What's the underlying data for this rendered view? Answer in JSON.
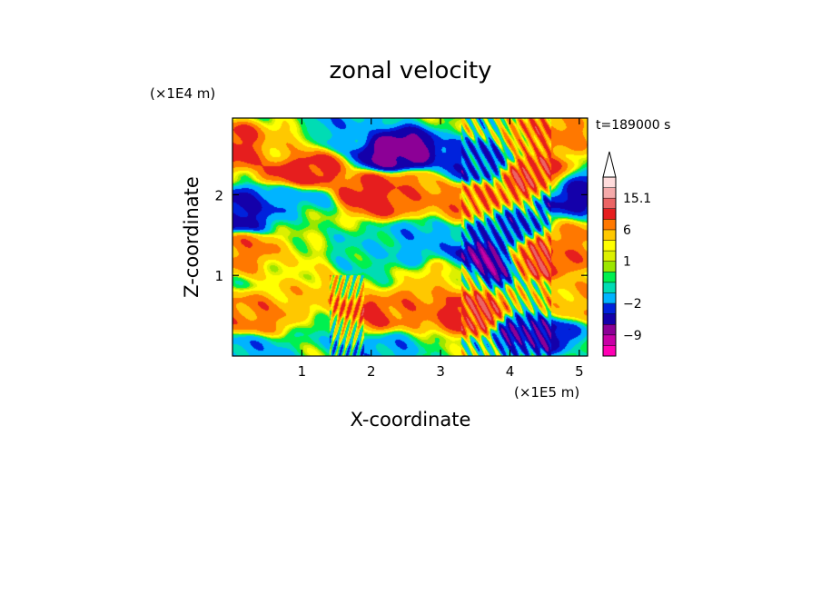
{
  "chart_data": {
    "type": "heatmap",
    "title": "zonal velocity",
    "xlabel": "X-coordinate",
    "ylabel": "Z-coordinate",
    "x_unit": "(×1E5 m)",
    "y_unit": "(×1E4 m)",
    "time_label": "t=189000 s",
    "xlim": [
      0,
      5.12
    ],
    "ylim": [
      0,
      2.95
    ],
    "x_ticks": [
      1,
      2,
      3,
      4,
      5
    ],
    "y_ticks": [
      1,
      2
    ],
    "colorbar": {
      "extend": "max",
      "levels": [
        -15,
        -12,
        -9,
        -6,
        -4,
        -2,
        -1,
        0,
        0.5,
        1,
        2,
        4,
        6,
        9,
        12,
        15.1
      ],
      "colors": [
        "#ff00b4",
        "#c800a6",
        "#8c0096",
        "#1400aa",
        "#0022dc",
        "#00b4ff",
        "#00dcb4",
        "#00f050",
        "#9be600",
        "#dcf000",
        "#ffff00",
        "#ffc800",
        "#ff7800",
        "#e61e1e",
        "#eb6464",
        "#f5aaaa",
        "#ffdcdc"
      ],
      "labels": [
        {
          "value": 15.1,
          "text": "15.1"
        },
        {
          "value": 6,
          "text": "6"
        },
        {
          "value": 1,
          "text": "1"
        },
        {
          "value": -2,
          "text": "−2"
        },
        {
          "value": -9,
          "text": "−9"
        }
      ]
    },
    "features": [
      {
        "x": 0.12,
        "z": 2.6,
        "value": 7.5
      },
      {
        "x": 0.65,
        "z": 2.6,
        "value": 2.5
      },
      {
        "x": 1.0,
        "z": 2.3,
        "value": 7.5
      },
      {
        "x": 2.4,
        "z": 2.55,
        "value": -10.5
      },
      {
        "x": 1.65,
        "z": 2.82,
        "value": -3
      },
      {
        "x": 0.1,
        "z": 1.78,
        "value": -7.5
      },
      {
        "x": 0.5,
        "z": 1.82,
        "value": -5
      },
      {
        "x": 0.85,
        "z": 1.9,
        "value": -3
      },
      {
        "x": 1.0,
        "z": 1.68,
        "value": 0.25
      },
      {
        "x": 2.1,
        "z": 2.0,
        "value": 7.5
      },
      {
        "x": 2.6,
        "z": 2.05,
        "value": 5
      },
      {
        "x": 3.4,
        "z": 2.4,
        "value": -5
      },
      {
        "x": 3.5,
        "z": 1.9,
        "value": 5
      },
      {
        "x": 4.45,
        "z": 2.2,
        "value": 7.5
      },
      {
        "x": 4.9,
        "z": 2.05,
        "value": -7.5
      },
      {
        "x": 4.6,
        "z": 2.75,
        "value": 5
      },
      {
        "x": 0.2,
        "z": 1.3,
        "value": 5
      },
      {
        "x": 0.3,
        "z": 0.5,
        "value": 5
      },
      {
        "x": 1.1,
        "z": 0.75,
        "value": 3
      },
      {
        "x": 0.9,
        "z": 1.1,
        "value": 1.5
      },
      {
        "x": 1.9,
        "z": 1.3,
        "value": -1.5
      },
      {
        "x": 2.7,
        "z": 1.4,
        "value": -3
      },
      {
        "x": 1.85,
        "z": 0.45,
        "value": 7.5
      },
      {
        "x": 2.7,
        "z": 0.6,
        "value": 5
      },
      {
        "x": 3.4,
        "z": 0.55,
        "value": 7.5
      },
      {
        "x": 3.65,
        "z": 1.15,
        "value": -10.5
      },
      {
        "x": 3.2,
        "z": 1.0,
        "value": 2.5
      },
      {
        "x": 4.4,
        "z": 1.2,
        "value": 7.5
      },
      {
        "x": 4.9,
        "z": 1.35,
        "value": 5
      },
      {
        "x": 4.35,
        "z": 0.3,
        "value": -7.5
      },
      {
        "x": 4.75,
        "z": 0.7,
        "value": 5
      },
      {
        "x": 4.6,
        "z": 0.7,
        "value": 0.25
      },
      {
        "x": 2.1,
        "z": 0.1,
        "value": -3
      },
      {
        "x": 0.2,
        "z": 0.05,
        "value": -3
      },
      {
        "x": 1.6,
        "z": 0.35,
        "value": -1.5
      },
      {
        "x": 3.9,
        "z": 1.6,
        "value": -5
      }
    ]
  }
}
